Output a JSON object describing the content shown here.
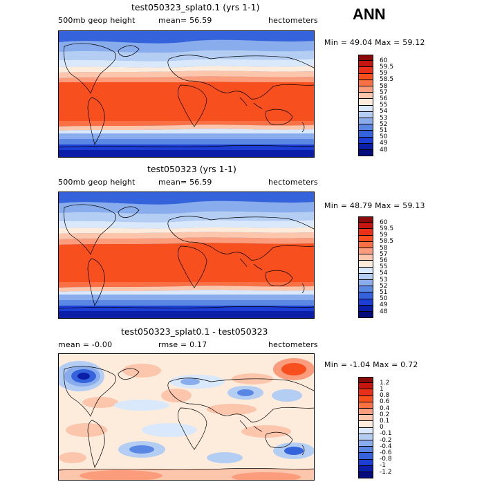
{
  "season": "ANN",
  "panels": [
    {
      "title": "test050323_splat0.1 (yrs 1-1)",
      "left_text": "500mb geop height",
      "mid_text": "mean=  56.59",
      "units": "hectometers",
      "minmax": "Min =  49.04 Max =  59.12",
      "kind": "field"
    },
    {
      "title": "test050323 (yrs 1-1)",
      "left_text": "500mb geop height",
      "mid_text": "mean=  56.59",
      "units": "hectometers",
      "minmax": "Min =  48.79 Max =  59.13",
      "kind": "field"
    },
    {
      "title": "test050323_splat0.1 - test050323",
      "left_text": "mean =  -0.00",
      "mid_text": "rmse =   0.17",
      "units": "hectometers",
      "minmax": "Min =  -1.04 Max =   0.72",
      "kind": "diff"
    }
  ],
  "colorbars": {
    "field": {
      "labels": [
        "60",
        "59.5",
        "59",
        "58.5",
        "58",
        "57",
        "56",
        "55",
        "54",
        "53",
        "52",
        "51",
        "50",
        "49",
        "48"
      ],
      "colors": [
        "#8b0a0a",
        "#c4160e",
        "#e8301a",
        "#f7501e",
        "#fa7045",
        "#fb9d7c",
        "#fcc6ad",
        "#fdebdc",
        "#d9e8fa",
        "#b4cdf3",
        "#88acec",
        "#5a87e3",
        "#3563dc",
        "#1c3ed5",
        "#0b1ea8",
        "#040b7a"
      ]
    },
    "diff": {
      "labels": [
        "1.2",
        "1",
        "0.8",
        "0.6",
        "0.4",
        "0.2",
        "0.1",
        "0",
        "-0.1",
        "-0.2",
        "-0.4",
        "-0.6",
        "-0.8",
        "-1",
        "-1.2"
      ],
      "colors": [
        "#8b0a0a",
        "#c4160e",
        "#e8301a",
        "#f7501e",
        "#fa7045",
        "#fb9d7c",
        "#fcc6ad",
        "#fdebdc",
        "#d9e8fa",
        "#b4cdf3",
        "#88acec",
        "#5a87e3",
        "#3563dc",
        "#1c3ed5",
        "#0b1ea8",
        "#040b7a"
      ]
    }
  },
  "chart_data": [
    {
      "type": "heatmap",
      "title": "test050323_splat0.1 (yrs 1-1)",
      "variable": "500mb geop height",
      "units": "hectometers",
      "mean": 56.59,
      "min": 49.04,
      "max": 59.12,
      "contour_levels": [
        48,
        49,
        50,
        51,
        52,
        53,
        54,
        55,
        56,
        57,
        58,
        58.5,
        59,
        59.5,
        60
      ]
    },
    {
      "type": "heatmap",
      "title": "test050323 (yrs 1-1)",
      "variable": "500mb geop height",
      "units": "hectometers",
      "mean": 56.59,
      "min": 48.79,
      "max": 59.13,
      "contour_levels": [
        48,
        49,
        50,
        51,
        52,
        53,
        54,
        55,
        56,
        57,
        58,
        58.5,
        59,
        59.5,
        60
      ]
    },
    {
      "type": "heatmap",
      "title": "test050323_splat0.1 - test050323",
      "units": "hectometers",
      "mean": -0.0,
      "rmse": 0.17,
      "min": -1.04,
      "max": 0.72,
      "contour_levels": [
        -1.2,
        -1,
        -0.8,
        -0.6,
        -0.4,
        -0.2,
        -0.1,
        0,
        0.1,
        0.2,
        0.4,
        0.6,
        0.8,
        1,
        1.2
      ]
    }
  ]
}
